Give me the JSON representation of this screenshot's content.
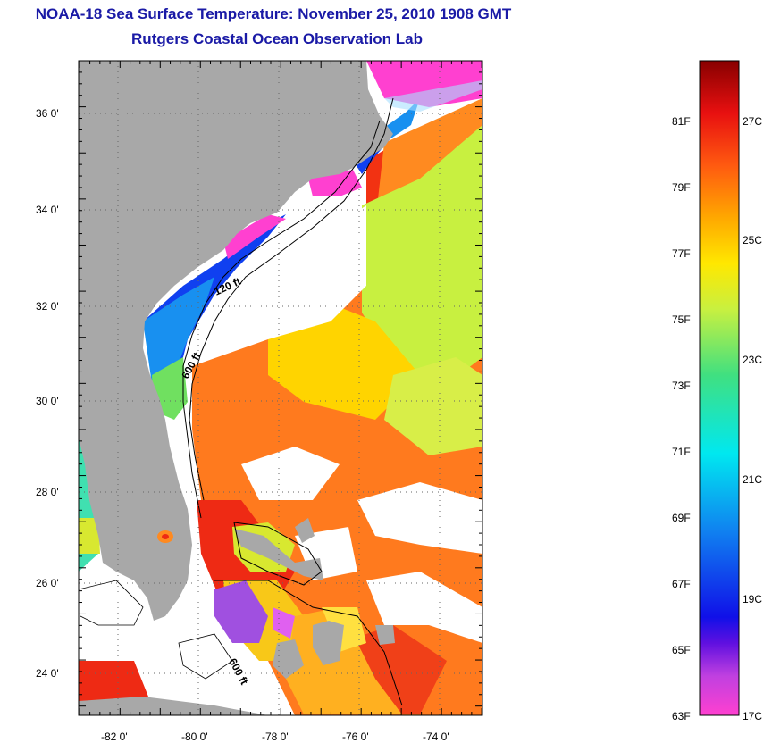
{
  "header": {
    "title": "NOAA-18 Sea Surface Temperature:  November 25, 2010 1908 GMT",
    "subtitle": "Rutgers Coastal Ocean Observation Lab"
  },
  "axes": {
    "lat_labels": [
      "36 0'",
      "34 0'",
      "32 0'",
      "30 0'",
      "28 0'",
      "26 0'",
      "24 0'"
    ],
    "lon_labels": [
      "-82 0'",
      "-80 0'",
      "-78 0'",
      "-76 0'",
      "-74 0'"
    ],
    "lat_range": [
      23,
      37.1
    ],
    "lon_range": [
      -83,
      -73
    ]
  },
  "isobaths": [
    "120 ft",
    "600 ft",
    "600 ft"
  ],
  "colorbar": {
    "fahrenheit": [
      "81F",
      "79F",
      "77F",
      "75F",
      "73F",
      "71F",
      "69F",
      "67F",
      "65F",
      "63F"
    ],
    "celsius": [
      "27C",
      "25C",
      "23C",
      "21C",
      "19C",
      "17C"
    ],
    "range_f": [
      63,
      83
    ]
  },
  "colors": {
    "land": "#a8a8a8",
    "cloud": "#ffffff",
    "title": "#1a1aa6"
  }
}
